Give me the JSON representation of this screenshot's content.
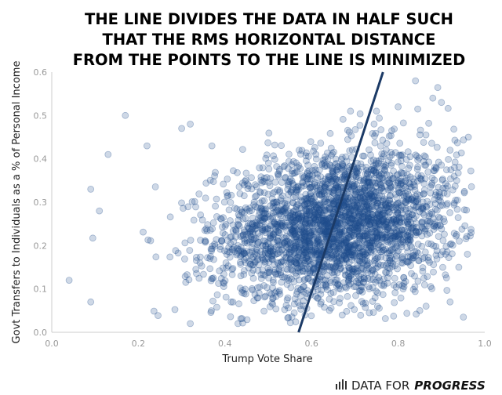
{
  "chart_data": {
    "type": "scatter",
    "title_lines": [
      "THE LINE DIVIDES THE DATA IN HALF SUCH",
      "THAT THE RMS HORIZONTAL DISTANCE",
      "FROM THE POINTS TO THE LINE IS MINIMIZED"
    ],
    "xlabel": "Trump Vote Share",
    "ylabel": "Govt Transfers to Individuals as a % of Personal Income",
    "xlim": [
      0.0,
      1.0
    ],
    "ylim": [
      0.0,
      0.6
    ],
    "xticks": [
      "0.0",
      "0.2",
      "0.4",
      "0.6",
      "0.8",
      "1.0"
    ],
    "yticks": [
      "0.0",
      "0.1",
      "0.2",
      "0.3",
      "0.4",
      "0.5",
      "0.6"
    ],
    "xtick_values": [
      0.0,
      0.2,
      0.4,
      0.6,
      0.8,
      1.0
    ],
    "ytick_values": [
      0.0,
      0.1,
      0.2,
      0.3,
      0.4,
      0.5,
      0.6
    ],
    "fit_line": {
      "x": [
        0.57,
        0.765
      ],
      "y": [
        0.0,
        0.6
      ]
    },
    "point_color": "#1f4e8c",
    "line_color": "#1b3a66",
    "cluster": {
      "x_mean": 0.66,
      "x_sd": 0.14,
      "y_mean": 0.245,
      "y_sd": 0.085,
      "count": 3000
    },
    "sample_points": [
      {
        "x": 0.04,
        "y": 0.12
      },
      {
        "x": 0.09,
        "y": 0.07
      },
      {
        "x": 0.09,
        "y": 0.33
      },
      {
        "x": 0.11,
        "y": 0.28
      },
      {
        "x": 0.13,
        "y": 0.41
      },
      {
        "x": 0.17,
        "y": 0.5
      },
      {
        "x": 0.22,
        "y": 0.43
      },
      {
        "x": 0.3,
        "y": 0.47
      },
      {
        "x": 0.32,
        "y": 0.48
      },
      {
        "x": 0.32,
        "y": 0.02
      },
      {
        "x": 0.37,
        "y": 0.43
      },
      {
        "x": 0.43,
        "y": 0.02
      },
      {
        "x": 0.69,
        "y": 0.51
      },
      {
        "x": 0.75,
        "y": 0.51
      },
      {
        "x": 0.8,
        "y": 0.52
      },
      {
        "x": 0.84,
        "y": 0.58
      },
      {
        "x": 0.88,
        "y": 0.54
      },
      {
        "x": 0.9,
        "y": 0.53
      },
      {
        "x": 0.92,
        "y": 0.42
      },
      {
        "x": 0.93,
        "y": 0.38
      },
      {
        "x": 0.94,
        "y": 0.15
      },
      {
        "x": 0.96,
        "y": 0.18
      },
      {
        "x": 0.92,
        "y": 0.07
      },
      {
        "x": 0.85,
        "y": 0.05
      }
    ]
  },
  "branding": {
    "plain": "DATA FOR",
    "bold": "PROGRESS",
    "icon": "bar-chart-icon"
  }
}
